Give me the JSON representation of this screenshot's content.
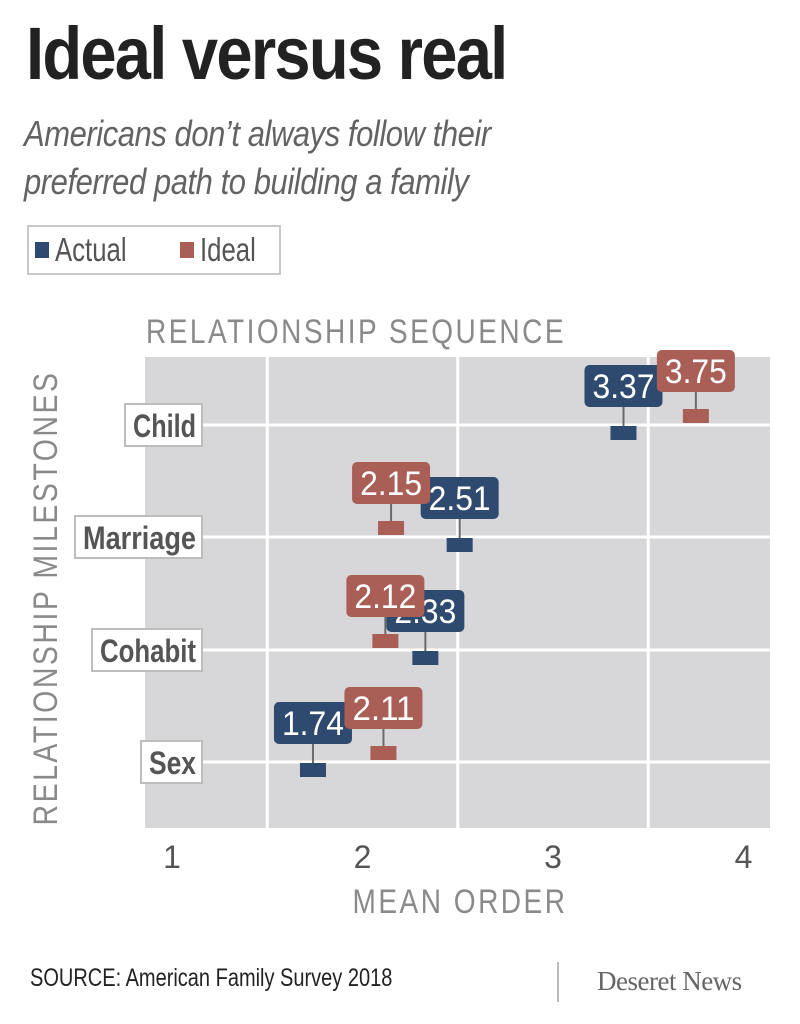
{
  "header": {
    "title": "Ideal versus real",
    "subtitle_line1": "Americans don’t always follow their",
    "subtitle_line2": "preferred path to building a family"
  },
  "legend": [
    {
      "label": "Actual",
      "color": "#2e4a6e"
    },
    {
      "label": "Ideal",
      "color": "#a95e56"
    }
  ],
  "colors": {
    "actual": "#2e4a6e",
    "ideal": "#a95e56",
    "plot_background": "#d7d7d9",
    "gridline": "#ffffff",
    "stem": "#6a6a6a",
    "axis_title": "#8a8a8a",
    "tick_label": "#555555"
  },
  "chart_data": {
    "type": "scatter",
    "title": "RELATIONSHIP SEQUENCE",
    "xlabel": "MEAN ORDER",
    "ylabel": "RELATIONSHIP MILESTONES",
    "xlim": [
      1,
      4
    ],
    "x_ticks": [
      1,
      2,
      3,
      4
    ],
    "x_tick_labels": [
      "1",
      "2",
      "3",
      "4"
    ],
    "categories": [
      "Child",
      "Marriage",
      "Cohabit",
      "Sex"
    ],
    "grid": true,
    "legend_position": "top-left",
    "series": [
      {
        "name": "Actual",
        "values": [
          3.37,
          2.51,
          2.33,
          1.74
        ],
        "labels": [
          "3.37",
          "2.51",
          "2.33",
          "1.74"
        ]
      },
      {
        "name": "Ideal",
        "values": [
          3.75,
          2.15,
          2.12,
          2.11
        ],
        "labels": [
          "3.75",
          "2.15",
          "2.12",
          "2.11"
        ]
      }
    ]
  },
  "footer": {
    "source": "SOURCE: American Family Survey 2018",
    "logo": "Deseret News"
  }
}
